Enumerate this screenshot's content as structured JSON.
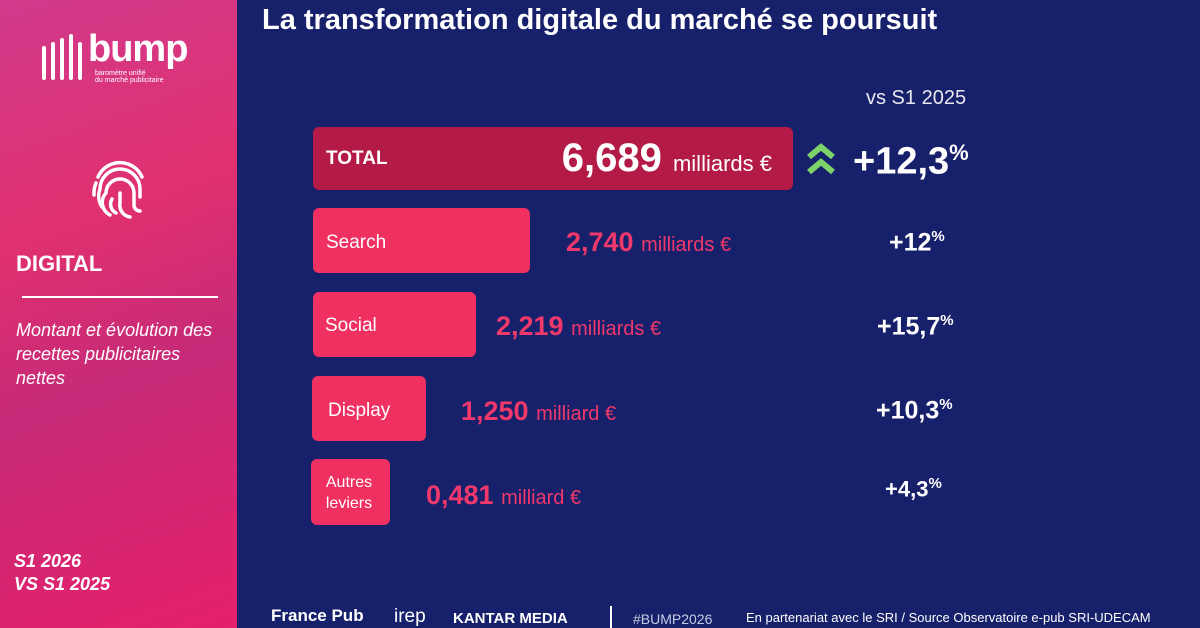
{
  "sidebar": {
    "brand": "bump",
    "brand_tagline": [
      "baromètre unifié",
      "du marché publicitaire"
    ],
    "section": "DIGITAL",
    "description": "Montant et évolution des recettes publicitaires nettes",
    "period": [
      "S1 2026",
      "VS S1 2025"
    ]
  },
  "header": {
    "title": "La transformation digitale du marché se poursuit"
  },
  "table": {
    "comparison_header": "vs S1 2025",
    "rows": [
      {
        "label": "TOTAL",
        "amount": "6,689",
        "unit": "milliards €",
        "change": "+12,3",
        "change_unit": "%"
      },
      {
        "label": "Search",
        "amount": "2,740",
        "unit": "milliards €",
        "change": "+12",
        "change_unit": "%"
      },
      {
        "label": "Social",
        "amount": "2,219",
        "unit": "milliards €",
        "change": "+15,7",
        "change_unit": "%"
      },
      {
        "label": "Display",
        "amount": "1,250",
        "unit": "milliard €",
        "change": "+10,3",
        "change_unit": "%"
      },
      {
        "label": "Autres leviers",
        "amount": "0,481",
        "unit": "milliard €",
        "change": "+4,3",
        "change_unit": "%"
      }
    ]
  },
  "footer": {
    "logos": [
      "France Pub",
      "irep",
      "KANTAR MEDIA"
    ],
    "hashtag": "#BUMP2026",
    "credit": "En partenariat avec le SRI / Source Observatoire e-pub SRI-UDECAM"
  }
}
